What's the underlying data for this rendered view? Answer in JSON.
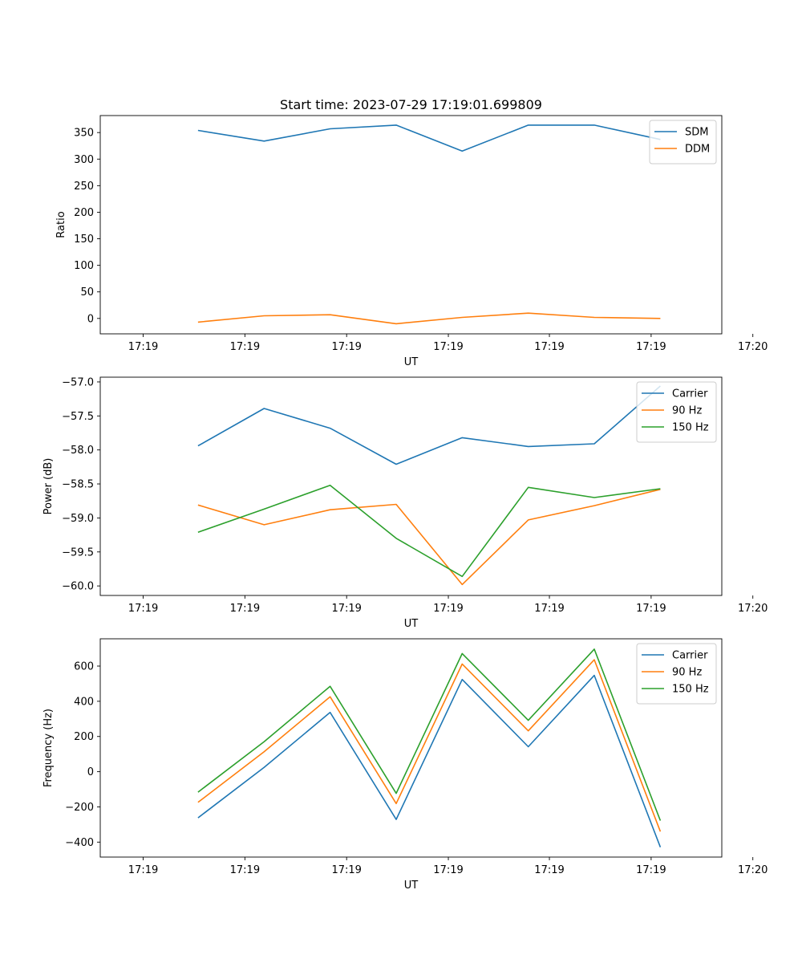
{
  "figure_title": "Start time: 2023-07-29 17:19:01.699809",
  "chart_data": [
    {
      "type": "line",
      "title": "Start time: 2023-07-29 17:19:01.699809",
      "xlabel": "UT",
      "ylabel": "Ratio",
      "x": [
        0.83,
        1.83,
        2.83,
        3.83,
        4.83,
        5.83,
        6.83,
        7.83
      ],
      "xlim": [
        -0.65,
        8.76
      ],
      "xticks": [
        0,
        1.54,
        3.08,
        4.62,
        6.15,
        7.69,
        9.23
      ],
      "xtick_labels": [
        "17:19",
        "17:19",
        "17:19",
        "17:19",
        "17:19",
        "17:19",
        "17:20"
      ],
      "ylim": [
        -29,
        382
      ],
      "yticks": [
        0,
        50,
        100,
        150,
        200,
        250,
        300,
        350
      ],
      "ytick_labels": [
        "0",
        "50",
        "100",
        "150",
        "200",
        "250",
        "300",
        "350"
      ],
      "legend_position": "upper-right",
      "series": [
        {
          "name": "SDM",
          "color": "#1f77b4",
          "values": [
            354,
            334,
            357,
            364,
            315,
            364,
            364,
            337
          ]
        },
        {
          "name": "DDM",
          "color": "#ff7f0e",
          "values": [
            -7,
            5,
            7,
            -10,
            2,
            10,
            2,
            0
          ]
        }
      ]
    },
    {
      "type": "line",
      "title": "",
      "xlabel": "UT",
      "ylabel": "Power (dB)",
      "x": [
        0.83,
        1.83,
        2.83,
        3.83,
        4.83,
        5.83,
        6.83,
        7.83
      ],
      "xlim": [
        -0.65,
        8.76
      ],
      "xticks": [
        0,
        1.54,
        3.08,
        4.62,
        6.15,
        7.69,
        9.23
      ],
      "xtick_labels": [
        "17:19",
        "17:19",
        "17:19",
        "17:19",
        "17:19",
        "17:19",
        "17:20"
      ],
      "ylim": [
        -60.14,
        -56.93
      ],
      "yticks": [
        -60.0,
        -59.5,
        -59.0,
        -58.5,
        -58.0,
        -57.5,
        -57.0
      ],
      "ytick_labels": [
        "−60.0",
        "−59.5",
        "−59.0",
        "−58.5",
        "−58.0",
        "−57.5",
        "−57.0"
      ],
      "legend_position": "upper-right",
      "series": [
        {
          "name": "Carrier",
          "color": "#1f77b4",
          "values": [
            -57.94,
            -57.39,
            -57.68,
            -58.21,
            -57.82,
            -57.95,
            -57.91,
            -57.06
          ]
        },
        {
          "name": "90 Hz",
          "color": "#ff7f0e",
          "values": [
            -58.81,
            -59.1,
            -58.88,
            -58.8,
            -59.98,
            -59.03,
            -58.82,
            -58.58
          ]
        },
        {
          "name": "150 Hz",
          "color": "#2ca02c",
          "values": [
            -59.21,
            -58.87,
            -58.52,
            -59.3,
            -59.86,
            -58.55,
            -58.7,
            -58.57
          ]
        }
      ]
    },
    {
      "type": "line",
      "title": "",
      "xlabel": "UT",
      "ylabel": "Frequency (Hz)",
      "x": [
        0.83,
        1.83,
        2.83,
        3.83,
        4.83,
        5.83,
        6.83,
        7.83
      ],
      "xlim": [
        -0.65,
        8.76
      ],
      "xticks": [
        0,
        1.54,
        3.08,
        4.62,
        6.15,
        7.69,
        9.23
      ],
      "xtick_labels": [
        "17:19",
        "17:19",
        "17:19",
        "17:19",
        "17:19",
        "17:19",
        "17:20"
      ],
      "ylim": [
        -485,
        755
      ],
      "yticks": [
        -400,
        -200,
        0,
        200,
        400,
        600
      ],
      "ytick_labels": [
        "−400",
        "−200",
        "0",
        "200",
        "400",
        "600"
      ],
      "legend_position": "upper-right",
      "series": [
        {
          "name": "Carrier",
          "color": "#1f77b4",
          "values": [
            -262,
            24,
            337,
            -271,
            524,
            142,
            547,
            -429
          ]
        },
        {
          "name": "90 Hz",
          "color": "#ff7f0e",
          "values": [
            -174,
            113,
            426,
            -181,
            612,
            232,
            636,
            -340
          ]
        },
        {
          "name": "150 Hz",
          "color": "#2ca02c",
          "values": [
            -116,
            170,
            485,
            -123,
            671,
            292,
            696,
            -278
          ]
        }
      ]
    }
  ]
}
